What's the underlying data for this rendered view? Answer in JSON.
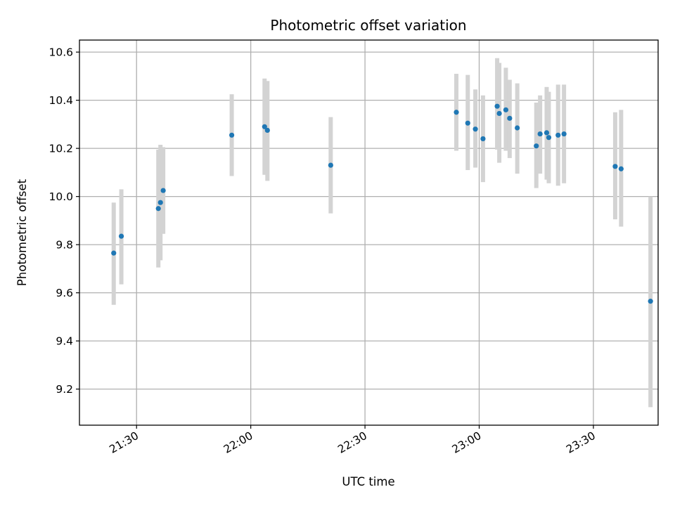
{
  "chart_data": {
    "type": "scatter",
    "title": "Photometric offset variation",
    "xlabel": "UTC time",
    "ylabel": "Photometric offset",
    "xlim": [
      "21:15",
      "23:47"
    ],
    "ylim": [
      9.05,
      10.65
    ],
    "xticks": [
      "21:30",
      "22:00",
      "22:30",
      "23:00",
      "23:30"
    ],
    "yticks": [
      9.2,
      9.4,
      9.6,
      9.8,
      10.0,
      10.2,
      10.4,
      10.6
    ],
    "grid": true,
    "errorbar_color": "#d3d3d3",
    "point_color": "#1f77b4",
    "points": [
      {
        "x": "21:24",
        "y": 9.765,
        "ylo": 9.55,
        "yhi": 9.975
      },
      {
        "x": "21:26",
        "y": 9.835,
        "ylo": 9.635,
        "yhi": 10.03
      },
      {
        "x": "21:36",
        "y": 9.95,
        "ylo": 9.705,
        "yhi": 10.195
      },
      {
        "x": "21:36",
        "y": 9.975,
        "ylo": 9.735,
        "yhi": 10.215
      },
      {
        "x": "21:37",
        "y": 10.025,
        "ylo": 9.845,
        "yhi": 10.205
      },
      {
        "x": "21:55",
        "y": 10.255,
        "ylo": 10.085,
        "yhi": 10.425
      },
      {
        "x": "22:04",
        "y": 10.29,
        "ylo": 10.09,
        "yhi": 10.49
      },
      {
        "x": "22:04",
        "y": 10.275,
        "ylo": 10.065,
        "yhi": 10.48
      },
      {
        "x": "22:21",
        "y": 10.13,
        "ylo": 9.93,
        "yhi": 10.33
      },
      {
        "x": "22:54",
        "y": 10.35,
        "ylo": 10.19,
        "yhi": 10.51
      },
      {
        "x": "22:57",
        "y": 10.305,
        "ylo": 10.11,
        "yhi": 10.505
      },
      {
        "x": "22:59",
        "y": 10.28,
        "ylo": 10.12,
        "yhi": 10.445
      },
      {
        "x": "23:01",
        "y": 10.24,
        "ylo": 10.06,
        "yhi": 10.42
      },
      {
        "x": "23:05",
        "y": 10.375,
        "ylo": 10.195,
        "yhi": 10.575
      },
      {
        "x": "23:05",
        "y": 10.345,
        "ylo": 10.14,
        "yhi": 10.555
      },
      {
        "x": "23:07",
        "y": 10.36,
        "ylo": 10.19,
        "yhi": 10.535
      },
      {
        "x": "23:08",
        "y": 10.325,
        "ylo": 10.16,
        "yhi": 10.485
      },
      {
        "x": "23:10",
        "y": 10.285,
        "ylo": 10.095,
        "yhi": 10.47
      },
      {
        "x": "23:15",
        "y": 10.21,
        "ylo": 10.035,
        "yhi": 10.39
      },
      {
        "x": "23:16",
        "y": 10.26,
        "ylo": 10.095,
        "yhi": 10.42
      },
      {
        "x": "23:18",
        "y": 10.265,
        "ylo": 10.07,
        "yhi": 10.455
      },
      {
        "x": "23:18",
        "y": 10.245,
        "ylo": 10.055,
        "yhi": 10.435
      },
      {
        "x": "23:21",
        "y": 10.255,
        "ylo": 10.045,
        "yhi": 10.465
      },
      {
        "x": "23:22",
        "y": 10.26,
        "ylo": 10.055,
        "yhi": 10.465
      },
      {
        "x": "23:36",
        "y": 10.125,
        "ylo": 9.905,
        "yhi": 10.35
      },
      {
        "x": "23:37",
        "y": 10.115,
        "ylo": 9.875,
        "yhi": 10.36
      },
      {
        "x": "23:45",
        "y": 9.565,
        "ylo": 9.125,
        "yhi": 10.0
      }
    ]
  }
}
